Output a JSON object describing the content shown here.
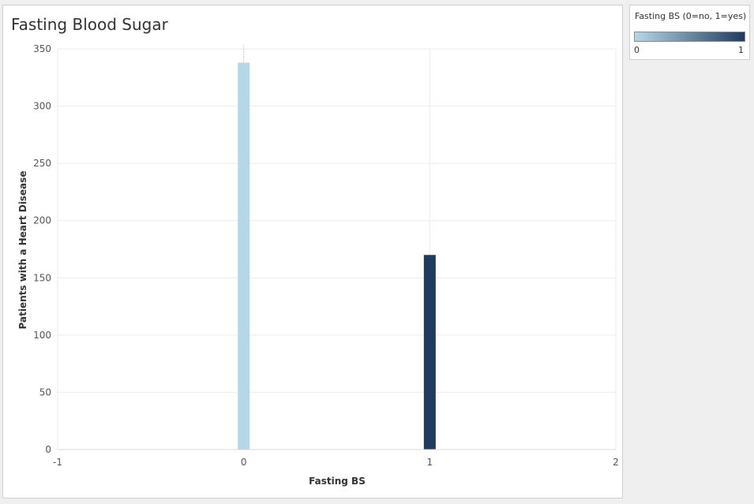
{
  "chart_data": {
    "type": "bar",
    "title": "Fasting Blood Sugar",
    "xlabel": "Fasting BS",
    "ylabel": "Patients with a Heart Disease",
    "x": [
      0,
      1
    ],
    "values": [
      338,
      170
    ],
    "xlim": [
      -1,
      2
    ],
    "ylim": [
      0,
      350
    ],
    "x_ticks": [
      -1,
      0,
      1,
      2
    ],
    "y_ticks": [
      0,
      50,
      100,
      150,
      200,
      250,
      300,
      350
    ],
    "grid": true,
    "bar_colors": [
      "#b4d8e8",
      "#1f3b5f"
    ]
  },
  "legend": {
    "title": "Fasting BS (0=no, 1=yes)",
    "min_label": "0",
    "max_label": "1",
    "color_low": "#b4d8e8",
    "color_high": "#1f3b5f"
  }
}
